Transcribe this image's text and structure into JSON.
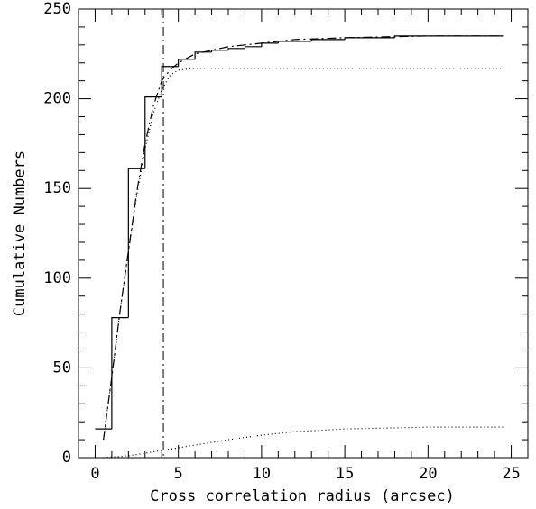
{
  "chart_data": {
    "type": "line",
    "x_label": "Cross correlation radius (arcsec)",
    "y_label": "Cumulative Numbers",
    "xlim": [
      -1,
      26
    ],
    "ylim": [
      0,
      250
    ],
    "xticks": [
      0,
      5,
      10,
      15,
      20,
      25
    ],
    "yticks": [
      0,
      50,
      100,
      150,
      200,
      250
    ],
    "xminor_ticks": [
      -1,
      1,
      2,
      3,
      4,
      6,
      7,
      8,
      9,
      11,
      12,
      13,
      14,
      16,
      17,
      18,
      19,
      21,
      22,
      23,
      24,
      26
    ],
    "yminor_ticks": [
      10,
      20,
      30,
      40,
      60,
      70,
      80,
      90,
      110,
      120,
      130,
      140,
      160,
      170,
      180,
      190,
      210,
      220,
      230,
      240
    ],
    "vline": 4.1,
    "vline_style": "dashdot",
    "series": [
      {
        "color": "#000000",
        "linestyle": "solid",
        "drawstyle": "steps-post",
        "x": [
          0,
          1,
          2,
          3,
          4,
          5,
          6,
          7,
          8,
          9,
          10,
          11,
          12,
          13,
          14,
          15,
          16,
          17,
          18,
          19,
          20,
          21,
          22,
          23,
          24.5
        ],
        "values": [
          16,
          78,
          161,
          201,
          218,
          222,
          226,
          227,
          228,
          229,
          231,
          232,
          232,
          233,
          233,
          234,
          234,
          234,
          235,
          235,
          235,
          235,
          235,
          235,
          235
        ]
      },
      {
        "color": "#000000",
        "linestyle": "dashdot",
        "drawstyle": "default",
        "x": [
          0.5,
          1,
          1.5,
          2,
          2.5,
          3,
          3.5,
          4,
          4.5,
          5,
          6,
          7,
          8,
          10,
          12,
          15,
          20,
          24.5
        ],
        "values": [
          10,
          45,
          82,
          115,
          148,
          175,
          196,
          210,
          216,
          220,
          225,
          227,
          229,
          231,
          233,
          234,
          235,
          235
        ]
      },
      {
        "color": "#000000",
        "linestyle": "dotted",
        "drawstyle": "default",
        "x": [
          0.5,
          1,
          1.5,
          2,
          2.5,
          3,
          3.5,
          4,
          4.5,
          5,
          6,
          24.5
        ],
        "values": [
          10,
          45,
          82,
          115,
          146,
          172,
          192,
          205,
          213,
          216,
          217,
          217
        ]
      },
      {
        "color": "#000000",
        "linestyle": "dotted",
        "drawstyle": "default",
        "x": [
          0.5,
          2,
          4,
          6,
          8,
          10,
          12,
          15,
          20,
          24.5
        ],
        "values": [
          0,
          1,
          4,
          7,
          10,
          12.5,
          14.5,
          16,
          17,
          17
        ]
      }
    ]
  }
}
